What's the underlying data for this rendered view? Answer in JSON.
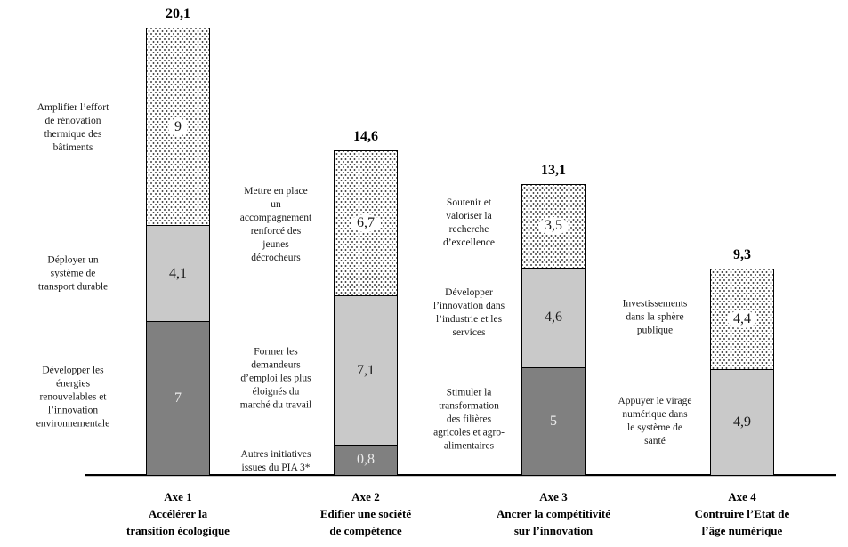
{
  "chart_data": {
    "type": "bar",
    "subtype": "stacked-vertical",
    "title": "",
    "xlabel": "",
    "ylabel": "",
    "ylim": [
      0,
      21
    ],
    "grid": false,
    "legend": "none (segments annotated by side labels)",
    "value_format": "french decimal comma",
    "colors": {
      "dark_segment": "#808080",
      "light_segment": "#c9c9c9",
      "dotted_segment_background": "#ffffff",
      "dotted_segment_dots": "#4a4a4a",
      "segment_border": "#000000",
      "value_on_dark": "#ececec",
      "text": "#1a1a1a"
    },
    "bars": [
      {
        "axis_label_lines": [
          "Axe 1",
          "Accélérer la",
          "transition écologique"
        ],
        "total": 20.1,
        "total_label": "20,1",
        "segments": [
          {
            "value": 7,
            "label": "7",
            "style": "dark",
            "annotation_lines": [
              "Développer les",
              "énergies",
              "renouvelables et",
              "l’innovation",
              "environnementale"
            ]
          },
          {
            "value": 4.1,
            "label": "4,1",
            "style": "light",
            "annotation_lines": [
              "Déployer un",
              "système de",
              "transport durable"
            ]
          },
          {
            "value": 9,
            "label": "9",
            "style": "dotted",
            "annotation_lines": [
              "Amplifier l’effort",
              "de rénovation",
              "thermique des",
              "bâtiments"
            ]
          }
        ]
      },
      {
        "axis_label_lines": [
          "Axe 2",
          "Edifier une société",
          "de compétence"
        ],
        "total": 14.6,
        "total_label": "14,6",
        "segments": [
          {
            "value": 0.8,
            "label": "0,8",
            "style": "dark",
            "annotation_lines": [
              "Autres initiatives",
              "issues du PIA 3*"
            ]
          },
          {
            "value": 7.1,
            "label": "7,1",
            "style": "light",
            "annotation_lines": [
              "Former les",
              "demandeurs",
              "d’emploi les plus",
              "éloignés du",
              "marché du travail"
            ]
          },
          {
            "value": 6.7,
            "label": "6,7",
            "style": "dotted",
            "annotation_lines": [
              "Mettre en place",
              "un",
              "accompagnement",
              "renforcé des",
              "jeunes",
              "décrocheurs"
            ]
          }
        ]
      },
      {
        "axis_label_lines": [
          "Axe 3",
          "Ancrer la compétitivité",
          "sur l’innovation"
        ],
        "total": 13.1,
        "total_label": "13,1",
        "segments": [
          {
            "value": 5,
            "label": "5",
            "style": "dark",
            "annotation_lines": [
              "Stimuler la",
              "transformation",
              "des filières",
              "agricoles et agro-",
              "alimentaires"
            ]
          },
          {
            "value": 4.6,
            "label": "4,6",
            "style": "light",
            "annotation_lines": [
              "Développer",
              "l’innovation dans",
              "l’industrie et les",
              "services"
            ]
          },
          {
            "value": 3.5,
            "label": "3,5",
            "style": "dotted",
            "annotation_lines": [
              "Soutenir et",
              "valoriser la",
              "recherche",
              "d’excellence"
            ]
          }
        ]
      },
      {
        "axis_label_lines": [
          "Axe 4",
          "Contruire l’Etat de",
          "l’âge numérique"
        ],
        "total": 9.3,
        "total_label": "9,3",
        "segments": [
          {
            "value": 4.9,
            "label": "4,9",
            "style": "light",
            "annotation_lines": [
              "Appuyer le virage",
              "numérique dans",
              "le système de",
              "santé"
            ]
          },
          {
            "value": 4.4,
            "label": "4,4",
            "style": "dotted",
            "annotation_lines": [
              "Investissements",
              "dans la sphère",
              "publique"
            ]
          }
        ]
      }
    ]
  }
}
